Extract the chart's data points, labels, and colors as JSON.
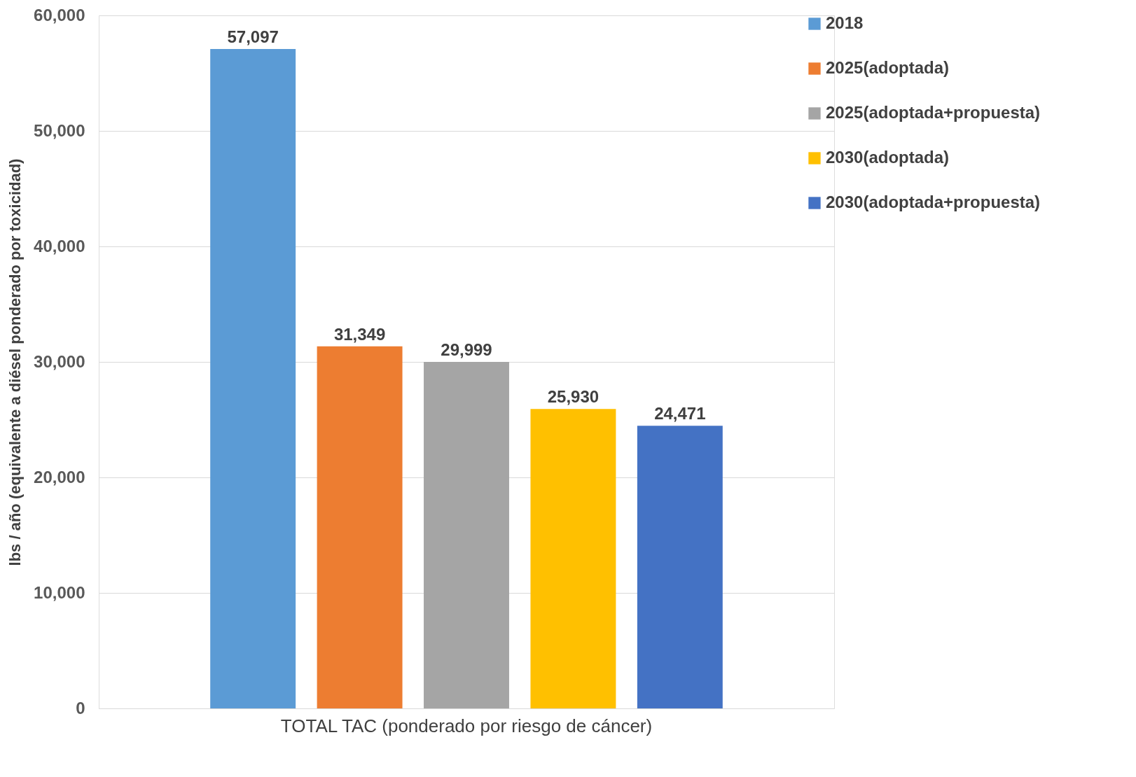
{
  "chart_data": {
    "type": "bar",
    "ylabel": "lbs / año (equivalente a diésel ponderado por toxicidad)",
    "categories": [
      "TOTAL TAC   (ponderado por riesgo de cáncer)"
    ],
    "series": [
      {
        "name": "2018",
        "color": "#5b9bd5",
        "values": [
          57097
        ],
        "value_labels": [
          "57,097"
        ]
      },
      {
        "name": "2025(adoptada)",
        "color": "#ed7d31",
        "values": [
          31349
        ],
        "value_labels": [
          "31,349"
        ]
      },
      {
        "name": "2025(adoptada+propuesta)",
        "color": "#a5a5a5",
        "values": [
          29999
        ],
        "value_labels": [
          "29,999"
        ]
      },
      {
        "name": "2030(adoptada)",
        "color": "#ffc000",
        "values": [
          25930
        ],
        "value_labels": [
          "25,930"
        ]
      },
      {
        "name": "2030(adoptada+propuesta)",
        "color": "#4472c4",
        "values": [
          24471
        ],
        "value_labels": [
          "24,471"
        ]
      }
    ],
    "ylim": [
      0,
      60000
    ],
    "yticks": [
      0,
      {
        "value": 10000,
        "label": "10,000"
      },
      {
        "value": 20000,
        "label": "20,000"
      },
      {
        "value": 30000,
        "label": "30,000"
      },
      {
        "value": 40000,
        "label": "40,000"
      },
      {
        "value": 50000,
        "label": "50,000"
      },
      {
        "value": 60000,
        "label": "60,000"
      }
    ],
    "grid": "y",
    "legend": "right"
  }
}
